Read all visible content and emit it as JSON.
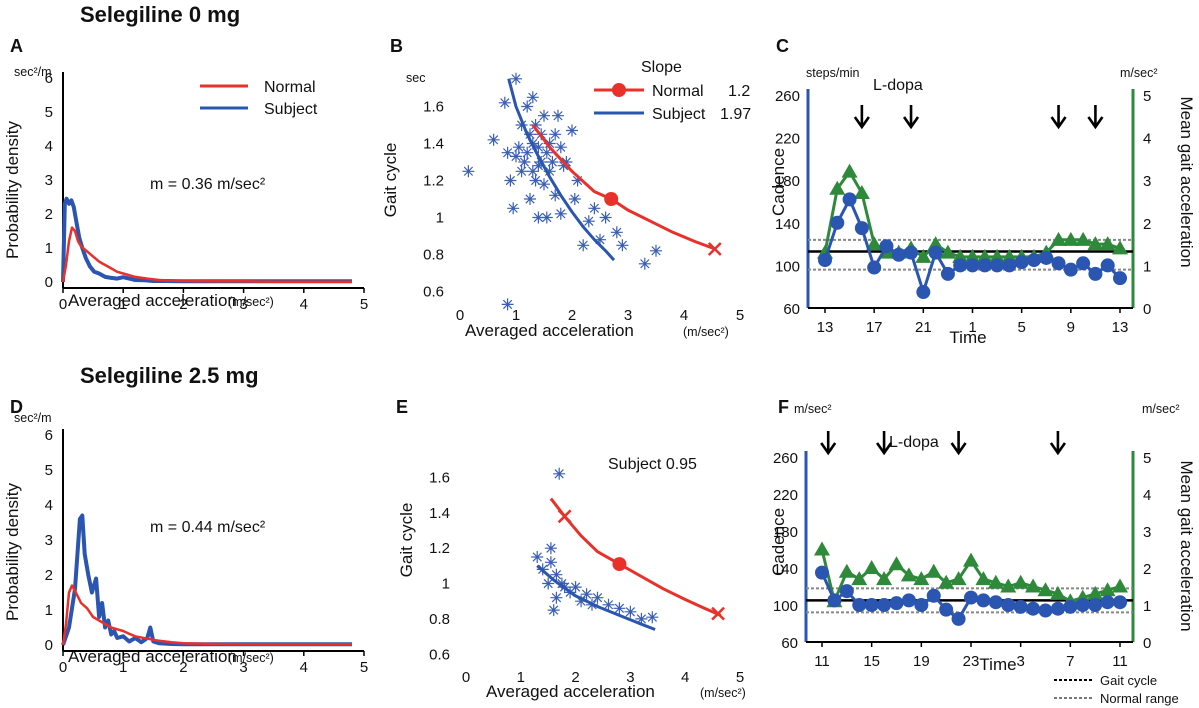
{
  "row_titles": {
    "top": "Selegiline 0 mg",
    "bottom": "Selegiline 2.5 mg"
  },
  "colors": {
    "normal": "#e8312a",
    "subject": "#2a55b0",
    "green": "#2e8a3a",
    "black": "#000000",
    "gray": "#9a9a9a"
  },
  "panels": {
    "A": {
      "letter": "A",
      "y_unit": "sec²/m",
      "ylabel": "Probability density",
      "xlabel": "Averaged acceleration",
      "x_unit": "(m/sec²)",
      "annotation": "m = 0.36 m/sec²",
      "legend": {
        "normal": "Normal",
        "subject": "Subject"
      }
    },
    "B": {
      "letter": "B",
      "y_unit": "sec",
      "ylabel": "Gait cycle",
      "xlabel": "Averaged acceleration",
      "x_unit": "(m/sec²)",
      "legend": {
        "title": "Slope",
        "normal": "Normal",
        "normal_value": "1.2",
        "subject": "Subject",
        "subject_value": "1.97"
      }
    },
    "C": {
      "letter": "C",
      "left_unit": "steps/min",
      "right_unit": "m/sec²",
      "ylabel_left": "Cadence",
      "ylabel_right": "Mean gait acceleration",
      "xlabel": "Time",
      "ldopa_label": "L-dopa"
    },
    "D": {
      "letter": "D",
      "y_unit": "sec²/m",
      "ylabel": "Probability density",
      "xlabel": "Averaged acceleration",
      "x_unit": "(m/sec²)",
      "annotation": "m = 0.44 m/sec²"
    },
    "E": {
      "letter": "E",
      "ylabel": "Gait cycle",
      "xlabel": "Averaged acceleration",
      "x_unit": "(m/sec²)",
      "annotation": "Subject 0.95"
    },
    "F": {
      "letter": "F",
      "left_unit": "m/sec²",
      "right_unit": "m/sec²",
      "ylabel_left": "Cadence",
      "ylabel_right": "Mean gait acceleration",
      "xlabel": "Time",
      "ldopa_label": "L-dopa",
      "legend": {
        "line1": "Gait cycle",
        "line2": "Normal range"
      }
    }
  },
  "chart_data": [
    {
      "id": "A",
      "type": "line",
      "title": "",
      "xlabel": "Averaged acceleration (m/sec²)",
      "ylabel": "Probability density (sec²/m)",
      "xlim": [
        0,
        5
      ],
      "ylim": [
        0,
        6
      ],
      "xticks": [
        "0",
        "1",
        "2",
        "3",
        "4",
        "5"
      ],
      "yticks": [
        "0",
        "1",
        "2",
        "3",
        "4",
        "5",
        "6"
      ],
      "series": [
        {
          "name": "Subject",
          "color": "subject",
          "x": [
            0,
            0.03,
            0.06,
            0.1,
            0.14,
            0.18,
            0.22,
            0.27,
            0.32,
            0.38,
            0.45,
            0.52,
            0.6,
            0.7,
            0.8,
            0.9,
            1.0,
            1.1,
            1.2,
            1.35,
            1.5,
            1.7,
            2.0,
            2.5,
            3.0,
            3.5,
            4.0,
            4.5,
            4.8
          ],
          "y": [
            0,
            2.3,
            2.45,
            2.3,
            2.4,
            2.2,
            1.8,
            1.3,
            1.0,
            0.7,
            0.45,
            0.3,
            0.25,
            0.15,
            0.12,
            0.1,
            0.14,
            0.1,
            0.06,
            0.05,
            0.03,
            0.03,
            0.02,
            0.02,
            0.02,
            0.02,
            0.02,
            0.02,
            0.02
          ]
        },
        {
          "name": "Normal",
          "color": "normal",
          "x": [
            0,
            0.05,
            0.1,
            0.15,
            0.2,
            0.25,
            0.3,
            0.4,
            0.5,
            0.6,
            0.7,
            0.8,
            0.9,
            1.0,
            1.2,
            1.4,
            1.6,
            1.8,
            2.0,
            2.5,
            3.0,
            3.5,
            4.0,
            4.5,
            4.8
          ],
          "y": [
            0,
            0.5,
            1.2,
            1.6,
            1.5,
            1.2,
            1.05,
            0.9,
            0.75,
            0.6,
            0.5,
            0.4,
            0.3,
            0.25,
            0.15,
            0.1,
            0.06,
            0.04,
            0.03,
            0.02,
            0.02,
            0.01,
            0.01,
            0.01,
            0.01
          ]
        }
      ],
      "legend": [
        "Normal",
        "Subject"
      ]
    },
    {
      "id": "B",
      "type": "scatter",
      "title": "",
      "xlabel": "Averaged acceleration (m/sec²)",
      "ylabel": "Gait cycle (sec)",
      "xlim": [
        0,
        5
      ],
      "ylim": [
        0.5,
        1.7
      ],
      "xticks": [
        "0",
        "1",
        "2",
        "3",
        "4",
        "5"
      ],
      "yticks": [
        "0.6",
        "0.8",
        "1",
        "1.2",
        "1.4",
        "1.6"
      ],
      "scatter": {
        "name": "Subject points",
        "x": [
          0.15,
          0.6,
          0.8,
          0.85,
          0.9,
          0.95,
          1.0,
          1.0,
          1.05,
          1.1,
          1.1,
          1.15,
          1.2,
          1.2,
          1.25,
          1.25,
          1.3,
          1.3,
          1.3,
          1.35,
          1.35,
          1.4,
          1.4,
          1.4,
          1.45,
          1.45,
          1.5,
          1.5,
          1.55,
          1.55,
          1.6,
          1.6,
          1.65,
          1.7,
          1.7,
          1.75,
          1.8,
          1.8,
          1.85,
          1.9,
          2.0,
          2.05,
          2.1,
          2.2,
          2.3,
          2.4,
          2.5,
          2.6,
          2.8,
          2.9,
          3.3,
          3.5,
          0.85
        ],
        "y": [
          1.25,
          1.42,
          1.62,
          1.35,
          1.2,
          1.05,
          1.75,
          1.33,
          1.38,
          1.5,
          1.25,
          1.3,
          1.6,
          1.35,
          1.45,
          1.1,
          1.65,
          1.4,
          1.25,
          1.5,
          1.2,
          1.38,
          1.28,
          1.0,
          1.45,
          1.3,
          1.55,
          1.18,
          1.35,
          1.0,
          1.4,
          1.25,
          1.3,
          1.45,
          1.12,
          1.55,
          1.38,
          1.02,
          1.28,
          1.3,
          1.47,
          1.1,
          1.2,
          0.85,
          0.98,
          1.05,
          0.88,
          1.0,
          0.92,
          0.85,
          0.75,
          0.82,
          0.53
        ]
      },
      "series": [
        {
          "name": "Normal",
          "color": "normal",
          "slope": 1.2,
          "x": [
            1.3,
            1.6,
            2.0,
            2.4,
            2.7,
            3.0,
            3.4,
            3.8,
            4.2,
            4.55
          ],
          "y": [
            1.5,
            1.38,
            1.25,
            1.14,
            1.1,
            1.04,
            0.98,
            0.92,
            0.87,
            0.83
          ],
          "markers": [
            {
              "x": 2.7,
              "y": 1.1,
              "shape": "dot"
            },
            {
              "x": 4.55,
              "y": 0.83,
              "shape": "x"
            }
          ]
        },
        {
          "name": "Subject",
          "color": "subject",
          "slope": 1.97,
          "x": [
            0.87,
            1.0,
            1.2,
            1.4,
            1.6,
            1.8,
            2.0,
            2.2,
            2.4,
            2.6,
            2.75
          ],
          "y": [
            1.75,
            1.6,
            1.45,
            1.33,
            1.22,
            1.12,
            1.03,
            0.95,
            0.88,
            0.82,
            0.77
          ]
        }
      ],
      "legend": [
        "Normal 1.2",
        "Subject 1.97"
      ]
    },
    {
      "id": "C",
      "type": "line",
      "title": "",
      "xlabel": "Time",
      "ylabel_left": "Cadence (steps/min)",
      "ylabel_right": "Mean gait acceleration (m/sec²)",
      "xticks": [
        "13",
        "17",
        "21",
        "1",
        "5",
        "9",
        "13"
      ],
      "yticks_left": [
        "60",
        "100",
        "140",
        "180",
        "220",
        "260"
      ],
      "yticks_right": [
        "0",
        "1",
        "2",
        "3",
        "4",
        "5"
      ],
      "ylim_left": [
        60,
        260
      ],
      "ylim_right": [
        0,
        5
      ],
      "ldopa_times": [
        16,
        20,
        32,
        35
      ],
      "series": [
        {
          "name": "Cadence",
          "axis": "left",
          "color": "subject",
          "marker": "circle",
          "x": [
            13,
            14,
            15,
            16,
            17,
            18,
            19,
            20,
            21,
            22,
            23,
            24,
            25,
            26,
            27,
            28,
            29,
            30,
            31,
            32,
            33,
            34,
            35,
            36,
            37
          ],
          "y": [
            105,
            140,
            162,
            135,
            98,
            118,
            110,
            112,
            75,
            112,
            92,
            100,
            100,
            100,
            100,
            100,
            103,
            105,
            107,
            102,
            96,
            102,
            92,
            100,
            88
          ]
        },
        {
          "name": "Mean gait acceleration",
          "axis": "right",
          "color": "green",
          "marker": "triangle",
          "x": [
            13,
            14,
            15,
            16,
            17,
            18,
            19,
            20,
            21,
            22,
            23,
            24,
            25,
            26,
            27,
            28,
            29,
            30,
            31,
            32,
            33,
            34,
            35,
            36,
            37
          ],
          "y": [
            1.3,
            2.8,
            3.2,
            2.7,
            1.5,
            1.3,
            1.3,
            1.4,
            1.2,
            1.5,
            1.3,
            1.2,
            1.2,
            1.2,
            1.2,
            1.2,
            1.2,
            1.2,
            1.3,
            1.6,
            1.6,
            1.6,
            1.5,
            1.5,
            1.4
          ]
        }
      ],
      "reference": {
        "black_line": 113,
        "normal_range": [
          96,
          124
        ]
      }
    },
    {
      "id": "D",
      "type": "line",
      "title": "",
      "xlabel": "Averaged acceleration (m/sec²)",
      "ylabel": "Probability density (sec²/m)",
      "xlim": [
        0,
        5
      ],
      "ylim": [
        0,
        6
      ],
      "xticks": [
        "0",
        "1",
        "2",
        "3",
        "4",
        "5"
      ],
      "yticks": [
        "0",
        "1",
        "2",
        "3",
        "4",
        "5",
        "6"
      ],
      "series": [
        {
          "name": "Subject",
          "color": "subject",
          "x": [
            0,
            0.1,
            0.2,
            0.28,
            0.32,
            0.36,
            0.42,
            0.48,
            0.55,
            0.6,
            0.65,
            0.7,
            0.75,
            0.8,
            0.85,
            0.9,
            1.0,
            1.1,
            1.2,
            1.3,
            1.4,
            1.45,
            1.5,
            1.6,
            1.8,
            2.0,
            2.5,
            3.0,
            3.5,
            4.0,
            4.5,
            4.8
          ],
          "y": [
            0,
            0.5,
            1.6,
            3.6,
            3.7,
            2.6,
            2.0,
            1.5,
            1.9,
            0.8,
            1.2,
            0.5,
            0.7,
            0.3,
            0.4,
            0.2,
            0.25,
            0.1,
            0.2,
            0.08,
            0.2,
            0.5,
            0.1,
            0.05,
            0.03,
            0.02,
            0.02,
            0.02,
            0.02,
            0.02,
            0.02,
            0.02
          ]
        },
        {
          "name": "Normal",
          "color": "normal",
          "x": [
            0,
            0.05,
            0.1,
            0.15,
            0.2,
            0.3,
            0.4,
            0.5,
            0.6,
            0.7,
            0.8,
            0.9,
            1.0,
            1.1,
            1.2,
            1.4,
            1.6,
            1.8,
            2.0,
            2.5,
            3.0,
            3.5,
            4.0,
            4.5,
            4.8
          ],
          "y": [
            0,
            0.6,
            1.5,
            1.7,
            1.55,
            1.2,
            1.05,
            0.8,
            0.7,
            0.6,
            0.5,
            0.45,
            0.4,
            0.32,
            0.25,
            0.18,
            0.12,
            0.08,
            0.05,
            0.03,
            0.02,
            0.02,
            0.02,
            0.02,
            0.02
          ]
        }
      ]
    },
    {
      "id": "E",
      "type": "scatter",
      "title": "",
      "xlabel": "Averaged acceleration (m/sec²)",
      "ylabel": "Gait cycle",
      "xlim": [
        0,
        5
      ],
      "ylim": [
        0.5,
        1.8
      ],
      "xticks": [
        "0",
        "1",
        "2",
        "3",
        "4",
        "5"
      ],
      "yticks": [
        "0.6",
        "0.8",
        "1",
        "1.2",
        "1.4",
        "1.6"
      ],
      "scatter": {
        "name": "Subject points",
        "x": [
          1.3,
          1.4,
          1.5,
          1.55,
          1.6,
          1.65,
          1.7,
          1.75,
          1.8,
          1.9,
          2.0,
          2.1,
          2.2,
          2.3,
          2.4,
          2.6,
          2.8,
          3.0,
          3.2,
          3.4,
          1.55,
          1.65
        ],
        "y": [
          1.15,
          1.08,
          1.0,
          1.12,
          0.85,
          1.05,
          1.62,
          1.0,
          0.98,
          0.95,
          0.98,
          0.9,
          0.94,
          0.88,
          0.92,
          0.88,
          0.86,
          0.84,
          0.8,
          0.81,
          1.2,
          0.92
        ]
      },
      "series": [
        {
          "name": "Normal",
          "color": "normal",
          "x": [
            1.55,
            1.8,
            2.1,
            2.4,
            2.8,
            3.2,
            3.6,
            4.0,
            4.35,
            4.65
          ],
          "y": [
            1.48,
            1.38,
            1.27,
            1.18,
            1.11,
            1.04,
            0.97,
            0.91,
            0.86,
            0.82
          ],
          "markers": [
            {
              "x": 1.8,
              "y": 1.38,
              "shape": "x"
            },
            {
              "x": 2.8,
              "y": 1.11,
              "shape": "dot"
            },
            {
              "x": 4.6,
              "y": 0.83,
              "shape": "x"
            }
          ]
        },
        {
          "name": "Subject",
          "color": "subject",
          "slope": 0.95,
          "x": [
            1.3,
            1.6,
            2.0,
            2.4,
            2.8,
            3.2,
            3.45
          ],
          "y": [
            1.1,
            1.02,
            0.93,
            0.87,
            0.82,
            0.77,
            0.74
          ]
        }
      ]
    },
    {
      "id": "F",
      "type": "line",
      "title": "",
      "xlabel": "Time",
      "ylabel_left": "Cadence",
      "ylabel_right": "Mean gait acceleration (m/sec²)",
      "xticks": [
        "11",
        "15",
        "19",
        "23",
        "3",
        "7",
        "11"
      ],
      "yticks_left": [
        "60",
        "100",
        "140",
        "180",
        "220",
        "260"
      ],
      "yticks_right": [
        "0",
        "1",
        "2",
        "3",
        "4",
        "5"
      ],
      "ylim_left": [
        60,
        260
      ],
      "ylim_right": [
        0,
        5
      ],
      "ldopa_times": [
        11.5,
        16,
        22,
        30
      ],
      "series": [
        {
          "name": "Cadence",
          "axis": "left",
          "color": "subject",
          "marker": "circle",
          "x": [
            11,
            12,
            13,
            14,
            15,
            16,
            17,
            18,
            19,
            20,
            21,
            22,
            23,
            24,
            25,
            26,
            27,
            28,
            29,
            30,
            31,
            32,
            33,
            34,
            35
          ],
          "y": [
            135,
            105,
            115,
            100,
            100,
            100,
            102,
            105,
            100,
            110,
            95,
            85,
            108,
            105,
            103,
            100,
            98,
            96,
            94,
            96,
            98,
            100,
            100,
            103,
            103
          ]
        },
        {
          "name": "Mean gait acceleration",
          "axis": "right",
          "color": "green",
          "marker": "triangle",
          "x": [
            11,
            12,
            13,
            14,
            15,
            16,
            17,
            18,
            19,
            20,
            21,
            22,
            23,
            24,
            25,
            26,
            27,
            28,
            29,
            30,
            31,
            32,
            33,
            34,
            35
          ],
          "y": [
            2.5,
            1.1,
            1.9,
            1.7,
            2.0,
            1.7,
            2.1,
            1.8,
            1.7,
            1.9,
            1.6,
            1.7,
            2.2,
            1.7,
            1.6,
            1.5,
            1.6,
            1.5,
            1.4,
            1.3,
            1.1,
            1.2,
            1.3,
            1.4,
            1.5
          ]
        }
      ],
      "reference": {
        "black_line": 105,
        "normal_range": [
          92,
          118
        ]
      },
      "legend": [
        "Gait cycle",
        "Normal range"
      ]
    }
  ]
}
